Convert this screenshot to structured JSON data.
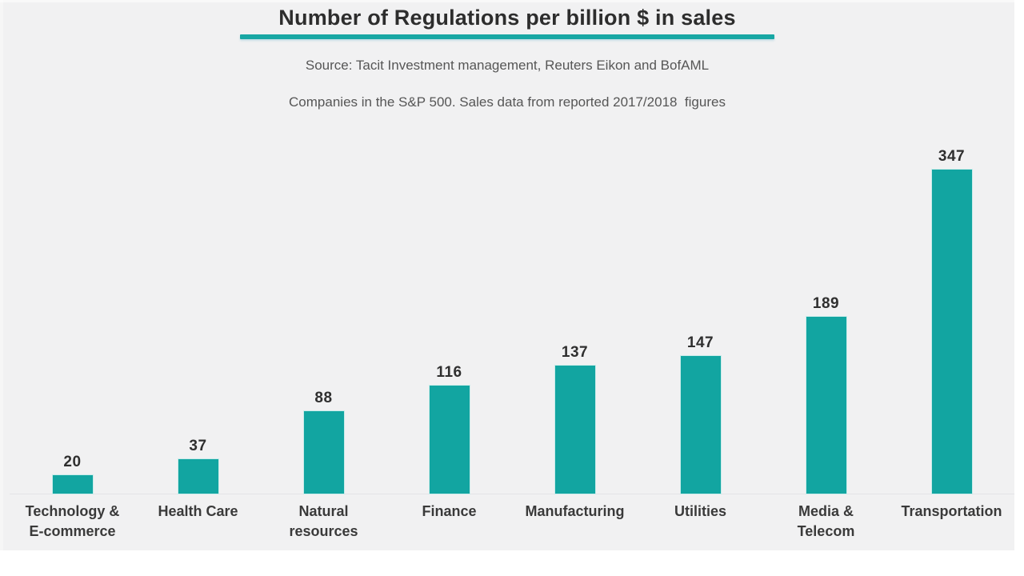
{
  "header": {
    "title": "Number of Regulations per billion $ in sales",
    "source": "Source: Tacit Investment management, Reuters Eikon and BofAML",
    "subtitle": "Companies in the S&P 500. Sales data from reported 2017/2018  figures"
  },
  "colors": {
    "accent_teal": "#12a5a1",
    "underline_teal": "#18a7a4",
    "slide_background": "#f1f1f2",
    "title_text": "#2d2d2d",
    "subtitle_text": "#565656",
    "label_text": "#3a3a3a"
  },
  "chart_data": {
    "type": "bar",
    "title": "Number of Regulations per billion $ in sales",
    "categories": [
      "Technology &\nE-commerce",
      "Health Care",
      "Natural\nresources",
      "Finance",
      "Manufacturing",
      "Utilities",
      "Media &\nTelecom",
      "Transportation"
    ],
    "values": [
      20,
      37,
      88,
      116,
      137,
      147,
      189,
      347
    ],
    "data_labels": [
      20,
      37,
      88,
      116,
      137,
      147,
      189,
      347
    ],
    "xlabel": "",
    "ylabel": "",
    "ylim": [
      0,
      360
    ],
    "grid": false,
    "legend": false,
    "bar_color": "#12a5a1",
    "orientation": "vertical"
  }
}
